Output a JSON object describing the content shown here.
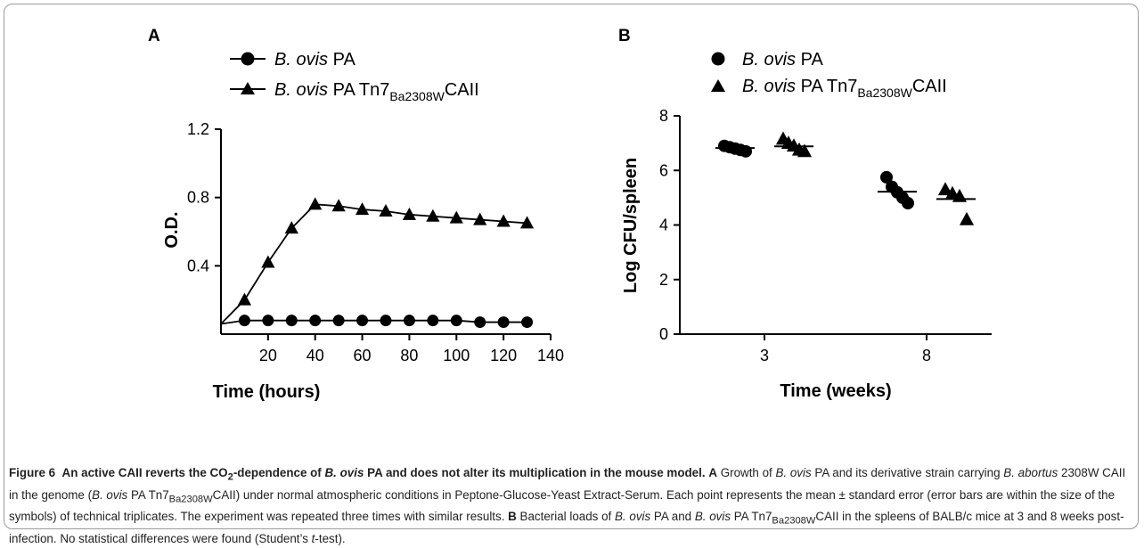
{
  "figure": {
    "panel_a_letter": "A",
    "panel_b_letter": "B"
  },
  "chart_data": [
    {
      "type": "line",
      "panel": "A",
      "xlabel": "Time (hours)",
      "ylabel": "O.D.",
      "xlim": [
        0,
        140
      ],
      "ylim": [
        0,
        1.2
      ],
      "x_ticks": [
        20,
        40,
        60,
        80,
        100,
        120,
        140
      ],
      "x_tick_labels": [
        "20",
        "40",
        "60",
        "80",
        "100",
        "120",
        "140"
      ],
      "y_ticks": [
        0.4,
        0.8,
        1.2
      ],
      "y_tick_labels": [
        "0.4",
        "0.8",
        "1.2"
      ],
      "legend_position": "top",
      "series": [
        {
          "name_species": "B. ovis",
          "name_rest": " PA",
          "marker": "circle",
          "x": [
            0,
            10,
            20,
            30,
            40,
            50,
            60,
            70,
            80,
            90,
            100,
            110,
            120,
            130
          ],
          "y": [
            0.06,
            0.08,
            0.08,
            0.08,
            0.08,
            0.08,
            0.08,
            0.08,
            0.08,
            0.08,
            0.08,
            0.07,
            0.07,
            0.07
          ],
          "marked_from": 1
        },
        {
          "name_species": "B. ovis",
          "name_rest": " PA Tn7",
          "name_sub": "Ba2308W",
          "name_suffix": "CAII",
          "marker": "triangle",
          "x": [
            0,
            10,
            20,
            30,
            40,
            50,
            60,
            70,
            80,
            90,
            100,
            110,
            120,
            130
          ],
          "y": [
            0.06,
            0.2,
            0.42,
            0.62,
            0.76,
            0.75,
            0.73,
            0.72,
            0.7,
            0.69,
            0.68,
            0.67,
            0.66,
            0.65
          ],
          "marked_from": 1
        }
      ]
    },
    {
      "type": "scatter",
      "panel": "B",
      "xlabel": "Time (weeks)",
      "ylabel": "Log CFU/spleen",
      "ylim": [
        0,
        8
      ],
      "y_ticks": [
        0,
        2,
        4,
        6,
        8
      ],
      "y_tick_labels": [
        "0",
        "2",
        "4",
        "6",
        "8"
      ],
      "categories": [
        "3",
        "8"
      ],
      "legend_position": "top",
      "series": [
        {
          "name_species": "B. ovis",
          "name_rest": " PA",
          "marker": "circle",
          "groups": [
            {
              "category": "3",
              "values": [
                6.9,
                6.85,
                6.8,
                6.75,
                6.7
              ],
              "mean": 6.82
            },
            {
              "category": "8",
              "values": [
                5.75,
                5.4,
                5.2,
                5.0,
                4.8
              ],
              "mean": 5.22
            }
          ]
        },
        {
          "name_species": "B. ovis",
          "name_rest": " PA Tn7",
          "name_sub": "Ba2308W",
          "name_suffix": "CAII",
          "marker": "triangle",
          "groups": [
            {
              "category": "3",
              "values": [
                7.15,
                7.0,
                6.9,
                6.75,
                6.7
              ],
              "mean": 6.88
            },
            {
              "category": "8",
              "values": [
                5.3,
                5.15,
                5.05,
                4.2
              ],
              "mean": 4.95
            }
          ]
        }
      ]
    }
  ],
  "caption": {
    "label": "Figure 6",
    "title_1": "An active CAII reverts the CO",
    "title_sub": "2",
    "title_2": "-dependence of ",
    "title_italic": "B. ovis",
    "title_3": " PA and does not alter its multiplication in the mouse model.",
    "ref_a": "A",
    "a_1": " Growth of ",
    "a_it1": "B. ovis",
    "a_2": " PA and its derivative strain carrying ",
    "a_it2": "B. abortus",
    "a_3": " 2308W CAII in the genome (",
    "a_it3": "B. ovis",
    "a_4": " PA Tn7",
    "a_sub": "Ba2308W",
    "a_5": "CAII) under normal atmospheric conditions in Peptone-Glucose-Yeast Extract-Serum. Each point represents the mean ± standard error (error bars are within the size of the symbols) of technical triplicates. The experiment was repeated three times with similar results. ",
    "ref_b": "B",
    "b_1": " Bacterial loads of ",
    "b_it1": "B. ovis",
    "b_2": " PA and ",
    "b_it2": "B. ovis",
    "b_3": " PA Tn7",
    "b_sub": "Ba2308W",
    "b_4": "CAII in the spleens of BALB/c mice at 3 and 8 weeks post-infection. No statistical differences were found (Student’s ",
    "b_it3": "t",
    "b_5": "-test)."
  }
}
